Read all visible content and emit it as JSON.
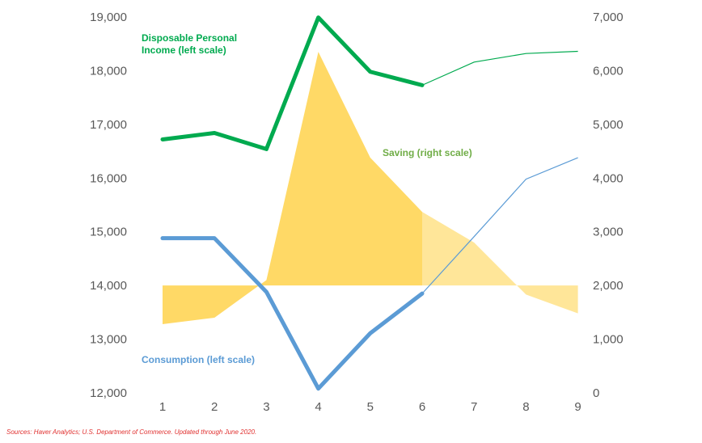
{
  "chart_data": {
    "type": "line",
    "title": "",
    "x": [
      1,
      2,
      3,
      4,
      5,
      6,
      7,
      8,
      9
    ],
    "x_ticks": [
      "1",
      "2",
      "3",
      "4",
      "5",
      "6",
      "7",
      "8",
      "9"
    ],
    "left_axis": {
      "range": [
        12000,
        19000
      ],
      "ticks": [
        "12,000",
        "13,000",
        "14,000",
        "15,000",
        "16,000",
        "17,000",
        "18,000",
        "19,000"
      ],
      "tick_values": [
        12000,
        13000,
        14000,
        15000,
        16000,
        17000,
        18000,
        19000
      ]
    },
    "right_axis": {
      "range": [
        0,
        7000
      ],
      "ticks": [
        "0",
        "1,000",
        "2,000",
        "3,000",
        "4,000",
        "5,000",
        "6,000",
        "7,000"
      ],
      "tick_values": [
        0,
        1000,
        2000,
        3000,
        4000,
        5000,
        6000,
        7000
      ]
    },
    "series": [
      {
        "name": "Disposable Personal Income (left scale)",
        "axis": "left",
        "type": "line",
        "color": "#00aa4f",
        "values": [
          16720,
          16840,
          16540,
          18990,
          17980,
          17730,
          18160,
          18320,
          18360
        ],
        "actual_through_index": 5
      },
      {
        "name": "Consumption (left scale)",
        "axis": "left",
        "type": "line",
        "color": "#5b9bd5",
        "values": [
          14880,
          14880,
          13880,
          12080,
          13110,
          13850,
          14910,
          15980,
          16380
        ],
        "actual_through_index": 5
      },
      {
        "name": "Saving (right scale)",
        "axis": "right",
        "type": "area",
        "color": "#ffd966",
        "forecast_color": "#ffe699",
        "values": [
          1280,
          1400,
          2100,
          6350,
          4380,
          3370,
          2800,
          1830,
          1480
        ],
        "actual_through_index": 5
      }
    ],
    "annotations": [
      {
        "series": 0,
        "lines": [
          "Disposable Personal",
          "Income (left scale)"
        ],
        "color": "#00aa4f"
      },
      {
        "series": 2,
        "lines": [
          "Saving (right scale)"
        ],
        "color": "#70ad47"
      },
      {
        "series": 1,
        "lines": [
          "Consumption (left scale)"
        ],
        "color": "#5b9bd5"
      }
    ]
  },
  "source_note": "Sources: Haver Analytics; U.S. Department of Commerce. Updated through June  2020."
}
